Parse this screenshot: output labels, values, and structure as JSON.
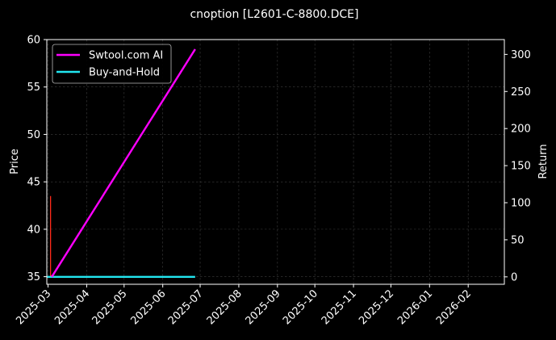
{
  "chart_data": {
    "type": "line",
    "title": "cnoption [L2601-C-8800.DCE]",
    "xlabel": "",
    "ylabel": "Price",
    "y2label": "Return",
    "x_ticks": [
      "2025-03",
      "2025-04",
      "2025-05",
      "2025-06",
      "2025-07",
      "2025-08",
      "2025-09",
      "2025-10",
      "2025-11",
      "2025-12",
      "2026-01",
      "2026-02"
    ],
    "xlim": [
      "2025-02-28",
      "2026-03-02"
    ],
    "ylim": [
      34.2,
      60
    ],
    "y_ticks": [
      35,
      40,
      45,
      50,
      55,
      60
    ],
    "y2lim": [
      -10,
      320
    ],
    "y2_ticks": [
      0,
      50,
      100,
      150,
      200,
      250,
      300
    ],
    "grid": true,
    "legend_position": "top-left",
    "series": [
      {
        "name": "Swtool.com AI",
        "axis": "right",
        "color": "#ff00ff",
        "x": [
          "2025-03-04",
          "2025-06-27"
        ],
        "y": [
          0,
          307
        ]
      },
      {
        "name": "Buy-and-Hold",
        "axis": "right",
        "color": "#22e6f0",
        "x": [
          "2025-02-28",
          "2025-06-27"
        ],
        "y": [
          0,
          0
        ]
      }
    ],
    "price_line": {
      "axis": "left",
      "color": "#ff2a1a",
      "x": [
        "2025-03-03",
        "2025-03-03",
        "2025-03-04"
      ],
      "y": [
        43.5,
        35.1,
        35.1
      ]
    }
  }
}
